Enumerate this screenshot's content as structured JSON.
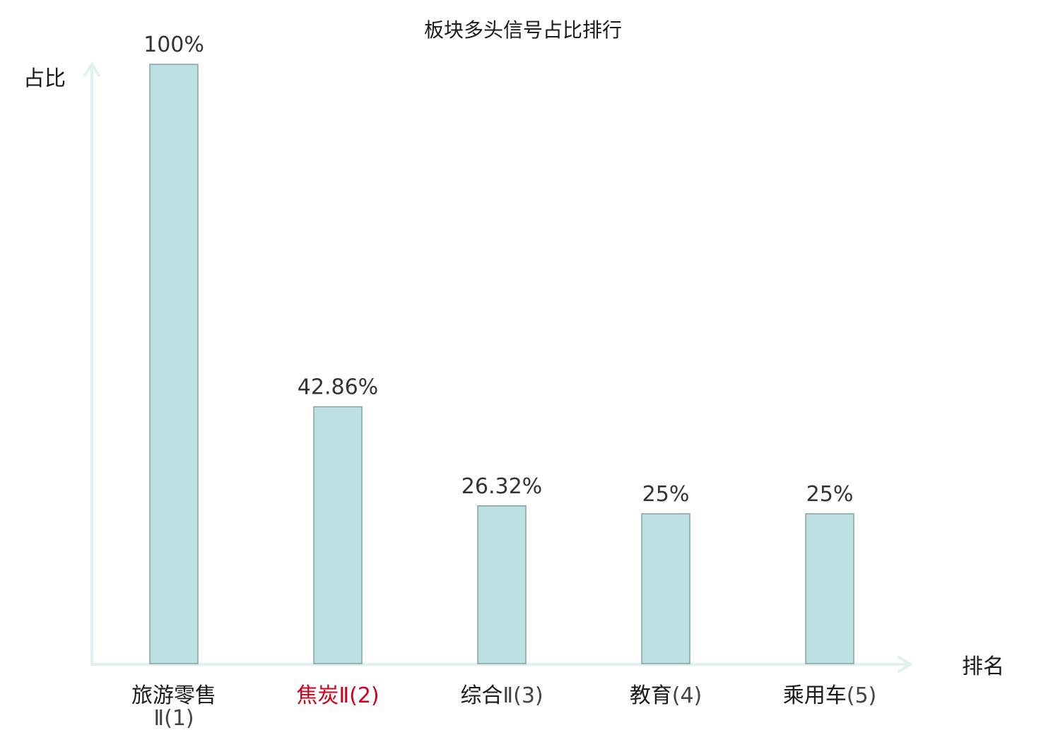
{
  "chart_data": {
    "type": "bar",
    "title": "板块多头信号占比排行",
    "xlabel": "排名",
    "ylabel": "占比",
    "categories": [
      {
        "name": "旅游零售",
        "suffix": "Ⅱ(1)",
        "highlight": false
      },
      {
        "name": "焦炭",
        "suffix": "Ⅱ(2)",
        "highlight": true
      },
      {
        "name": "综合",
        "suffix": "Ⅱ(3)",
        "highlight": false
      },
      {
        "name": "教育",
        "suffix": "(4)",
        "highlight": false
      },
      {
        "name": "乘用车",
        "suffix": "(5)",
        "highlight": false
      }
    ],
    "values": [
      100,
      42.86,
      26.32,
      25,
      25
    ],
    "value_labels": [
      "100%",
      "42.86%",
      "26.32%",
      "25%",
      "25%"
    ],
    "ylim": [
      0,
      100
    ],
    "grid": false,
    "colors": {
      "bar_fill": "#bce0e2",
      "bar_stroke": "#86a2a4",
      "axis": "#e0f2ef",
      "highlight_text": "#d0021b"
    }
  }
}
